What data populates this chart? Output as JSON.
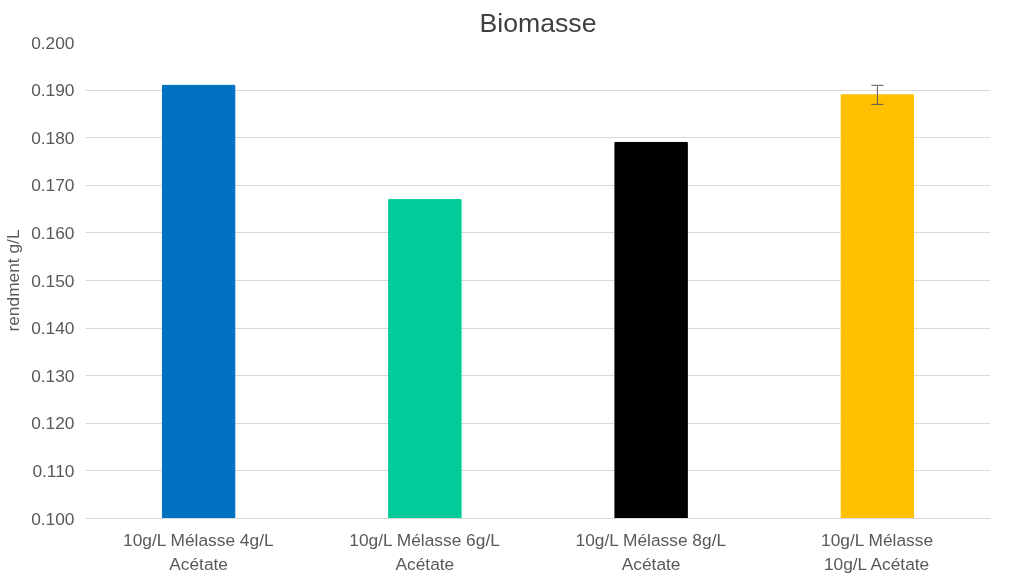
{
  "chart_data": {
    "type": "bar",
    "title": "Biomasse",
    "ylabel": "rendment g/L",
    "categories": [
      "10g/L Mélasse 4g/L\nAcétate",
      "10g/L Mélasse 6g/L\nAcétate",
      "10g/L Mélasse 8g/L\nAcétate",
      "10g/L Mélasse\n10g/L Acétate"
    ],
    "values": [
      0.191,
      0.167,
      0.179,
      0.189
    ],
    "colors": [
      "#0070c0",
      "#00cc99",
      "#000000",
      "#ffc000"
    ],
    "errors": [
      null,
      null,
      null,
      0.002
    ],
    "ylim": [
      0.1,
      0.2
    ],
    "yticks": [
      {
        "value": 0.1,
        "label": "0.100"
      },
      {
        "value": 0.11,
        "label": "0.110"
      },
      {
        "value": 0.12,
        "label": "0.120"
      },
      {
        "value": 0.13,
        "label": "0.130"
      },
      {
        "value": 0.14,
        "label": "0.140"
      },
      {
        "value": 0.15,
        "label": "0.150"
      },
      {
        "value": 0.16,
        "label": "0.160"
      },
      {
        "value": 0.17,
        "label": "0.170"
      },
      {
        "value": 0.18,
        "label": "0.180"
      },
      {
        "value": 0.19,
        "label": "0.190"
      },
      {
        "value": 0.2,
        "label": "0.200"
      }
    ],
    "grid": "y"
  }
}
